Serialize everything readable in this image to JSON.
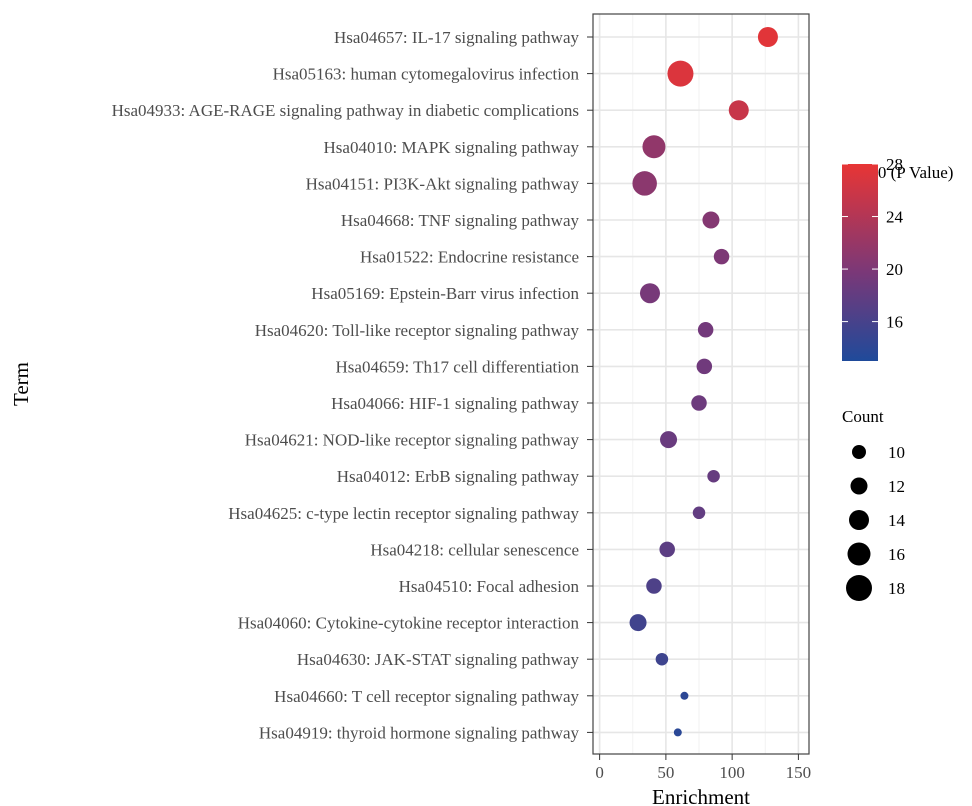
{
  "chart_data": {
    "type": "scatter",
    "xlabel": "Enrichment",
    "ylabel": "Term",
    "xlim": [
      -5,
      158
    ],
    "xticks": [
      0,
      50,
      100,
      150
    ],
    "grid": true,
    "colorbar": {
      "title": "-log10 (P Value)",
      "range": [
        13,
        28
      ],
      "ticks": [
        16,
        20,
        24,
        28
      ],
      "low_color": "#1f4a9a",
      "mid_color": "#7a3878",
      "high_color": "#e83535"
    },
    "size_legend": {
      "title": "Count",
      "values": [
        10,
        12,
        14,
        16,
        18
      ]
    },
    "points": [
      {
        "term": "Hsa04657: IL-17 signaling pathway",
        "enrichment": 127,
        "count": 14,
        "neglog10p": 27.5
      },
      {
        "term": "Hsa05163: human cytomegalovirus infection",
        "enrichment": 61,
        "count": 18,
        "neglog10p": 27.0
      },
      {
        "term": "Hsa04933: AGE-RAGE signaling pathway in diabetic complications",
        "enrichment": 105,
        "count": 14,
        "neglog10p": 25.5
      },
      {
        "term": "Hsa04010: MAPK signaling pathway",
        "enrichment": 41,
        "count": 16,
        "neglog10p": 21.5
      },
      {
        "term": "Hsa04151: PI3K-Akt signaling pathway",
        "enrichment": 34,
        "count": 17,
        "neglog10p": 21.0
      },
      {
        "term": "Hsa04668: TNF signaling pathway",
        "enrichment": 84,
        "count": 12,
        "neglog10p": 20.5
      },
      {
        "term": "Hsa01522: Endocrine resistance",
        "enrichment": 92,
        "count": 11,
        "neglog10p": 20.0
      },
      {
        "term": "Hsa05169: Epstein-Barr virus infection",
        "enrichment": 38,
        "count": 14,
        "neglog10p": 19.5
      },
      {
        "term": "Hsa04620: Toll-like receptor signaling pathway",
        "enrichment": 80,
        "count": 11,
        "neglog10p": 19.2
      },
      {
        "term": "Hsa04659: Th17 cell differentiation",
        "enrichment": 79,
        "count": 11,
        "neglog10p": 19.0
      },
      {
        "term": "Hsa04066: HIF-1 signaling pathway",
        "enrichment": 75,
        "count": 11,
        "neglog10p": 18.8
      },
      {
        "term": "Hsa04621: NOD-like receptor signaling pathway",
        "enrichment": 52,
        "count": 12,
        "neglog10p": 18.5
      },
      {
        "term": "Hsa04012: ErbB signaling pathway",
        "enrichment": 86,
        "count": 9,
        "neglog10p": 18.3
      },
      {
        "term": "Hsa04625: c-type lectin receptor signaling pathway",
        "enrichment": 75,
        "count": 9,
        "neglog10p": 18.0
      },
      {
        "term": "Hsa04218: cellular senescence",
        "enrichment": 51,
        "count": 11,
        "neglog10p": 17.5
      },
      {
        "term": "Hsa04510: Focal adhesion",
        "enrichment": 41,
        "count": 11,
        "neglog10p": 16.5
      },
      {
        "term": "Hsa04060: Cytokine-cytokine receptor interaction",
        "enrichment": 29,
        "count": 12,
        "neglog10p": 15.5
      },
      {
        "term": "Hsa04630: JAK-STAT signaling pathway",
        "enrichment": 47,
        "count": 9,
        "neglog10p": 15.3
      },
      {
        "term": "Hsa04660: T cell receptor signaling pathway",
        "enrichment": 64,
        "count": 6,
        "neglog10p": 14.0
      },
      {
        "term": "Hsa04919: thyroid hormone signaling pathway",
        "enrichment": 59,
        "count": 6,
        "neglog10p": 13.8
      }
    ]
  }
}
